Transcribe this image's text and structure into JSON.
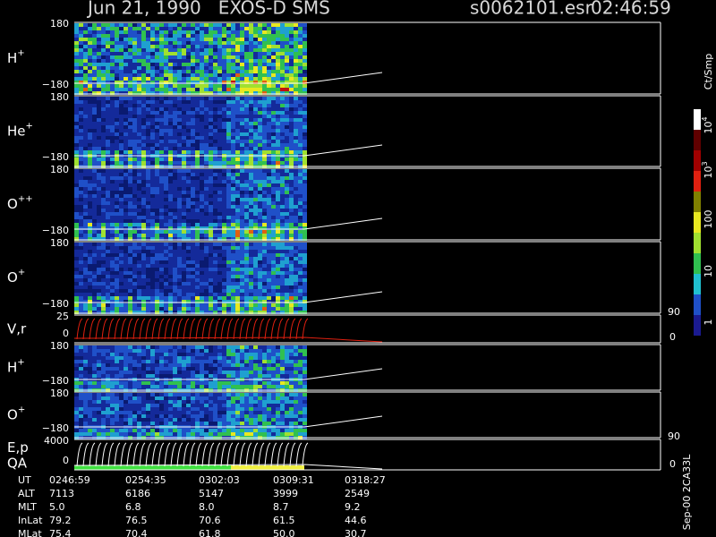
{
  "header": {
    "title": "Jun 21, 1990   EXOS-D SMS",
    "file": "s0062101.esr",
    "time": "02:46:59"
  },
  "panels": [
    {
      "label": "H",
      "sup": "+",
      "top": "180",
      "bottom": "−180"
    },
    {
      "label": "He",
      "sup": "+",
      "top": "180",
      "bottom": "−180"
    },
    {
      "label": "O",
      "sup": "++",
      "top": "180",
      "bottom": "−180"
    },
    {
      "label": "O",
      "sup": "+",
      "top": "180",
      "bottom": "−180"
    },
    {
      "label": "V,r",
      "top": "25",
      "bottom": "0",
      "right_top": "90",
      "right_bottom": "0"
    },
    {
      "label": "H",
      "sup": "+",
      "top": "180",
      "bottom": "−180"
    },
    {
      "label": "O",
      "sup": "+",
      "top": "180",
      "bottom": "−180"
    },
    {
      "label": "E,p",
      "label2": "QA",
      "top": "4000",
      "bottom": "0",
      "right_top": "90",
      "right_bottom": "0"
    }
  ],
  "colorbar": {
    "title": "Ct/Smp",
    "ticks": [
      {
        "base": "10",
        "exp": "4"
      },
      {
        "base": "10",
        "exp": "3"
      },
      {
        "base": "100"
      },
      {
        "base": "10"
      },
      {
        "base": "1"
      }
    ]
  },
  "table": {
    "labels": [
      "UT",
      "ALT",
      "MLT",
      "InLat",
      "MLat"
    ],
    "rows": [
      [
        "0246:59",
        "0254:35",
        "0302:03",
        "0309:31",
        "0318:27"
      ],
      [
        "7113",
        "6186",
        "5147",
        "3999",
        "2549"
      ],
      [
        "5.0",
        "6.8",
        "8.0",
        "8.7",
        "9.2"
      ],
      [
        "79.2",
        "76.5",
        "70.6",
        "61.5",
        "44.6"
      ],
      [
        "75.4",
        "70.4",
        "61.8",
        "50.0",
        "30.7"
      ]
    ]
  },
  "footer": "Sep-00 2CA33L"
}
